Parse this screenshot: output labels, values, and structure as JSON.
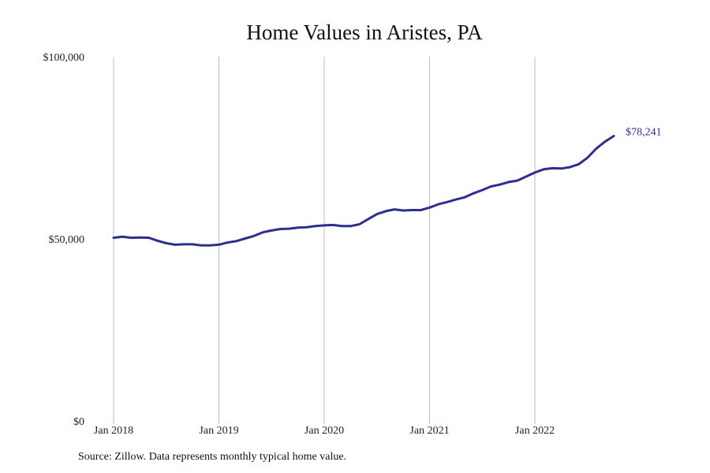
{
  "chart_data": {
    "type": "line",
    "title": "Home Values in Aristes, PA",
    "xlabel": "",
    "ylabel": "",
    "ylim": [
      0,
      100000
    ],
    "y_ticks": [
      {
        "value": 0,
        "label": "$0"
      },
      {
        "value": 50000,
        "label": "$50,000"
      },
      {
        "value": 100000,
        "label": "$100,000"
      }
    ],
    "x_ticks": [
      {
        "value": "2018-01",
        "label": "Jan 2018"
      },
      {
        "value": "2019-01",
        "label": "Jan 2019"
      },
      {
        "value": "2020-01",
        "label": "Jan 2020"
      },
      {
        "value": "2021-01",
        "label": "Jan 2021"
      },
      {
        "value": "2022-01",
        "label": "Jan 2022"
      }
    ],
    "grid": "vertical",
    "line_color": "#2e2e8f",
    "end_label": "$78,241",
    "series": [
      {
        "x": [
          "2018-01",
          "2018-02",
          "2018-03",
          "2018-04",
          "2018-05",
          "2018-06",
          "2018-07",
          "2018-08",
          "2018-09",
          "2018-10",
          "2018-11",
          "2018-12",
          "2019-01",
          "2019-02",
          "2019-03",
          "2019-04",
          "2019-05",
          "2019-06",
          "2019-07",
          "2019-08",
          "2019-09",
          "2019-10",
          "2019-11",
          "2019-12",
          "2020-01",
          "2020-02",
          "2020-03",
          "2020-04",
          "2020-05",
          "2020-06",
          "2020-07",
          "2020-08",
          "2020-09",
          "2020-10",
          "2020-11",
          "2020-12",
          "2021-01",
          "2021-02",
          "2021-03",
          "2021-04",
          "2021-05",
          "2021-06",
          "2021-07",
          "2021-08",
          "2021-09",
          "2021-10",
          "2021-11",
          "2021-12",
          "2022-01",
          "2022-02",
          "2022-03",
          "2022-04",
          "2022-05",
          "2022-06",
          "2022-07",
          "2022-08",
          "2022-09",
          "2022-10"
        ],
        "values": [
          50300,
          50600,
          50300,
          50400,
          50300,
          49500,
          48800,
          48400,
          48500,
          48500,
          48200,
          48200,
          48400,
          49000,
          49400,
          50100,
          50800,
          51800,
          52300,
          52700,
          52800,
          53100,
          53200,
          53500,
          53700,
          53800,
          53500,
          53500,
          54000,
          55400,
          56800,
          57600,
          58100,
          57800,
          57900,
          57900,
          58600,
          59500,
          60100,
          60800,
          61400,
          62500,
          63400,
          64400,
          64900,
          65600,
          66000,
          67100,
          68200,
          69100,
          69400,
          69300,
          69700,
          70500,
          72300,
          74800,
          76700,
          78241
        ]
      }
    ]
  },
  "source_note": "Source: Zillow. Data represents monthly typical home value."
}
